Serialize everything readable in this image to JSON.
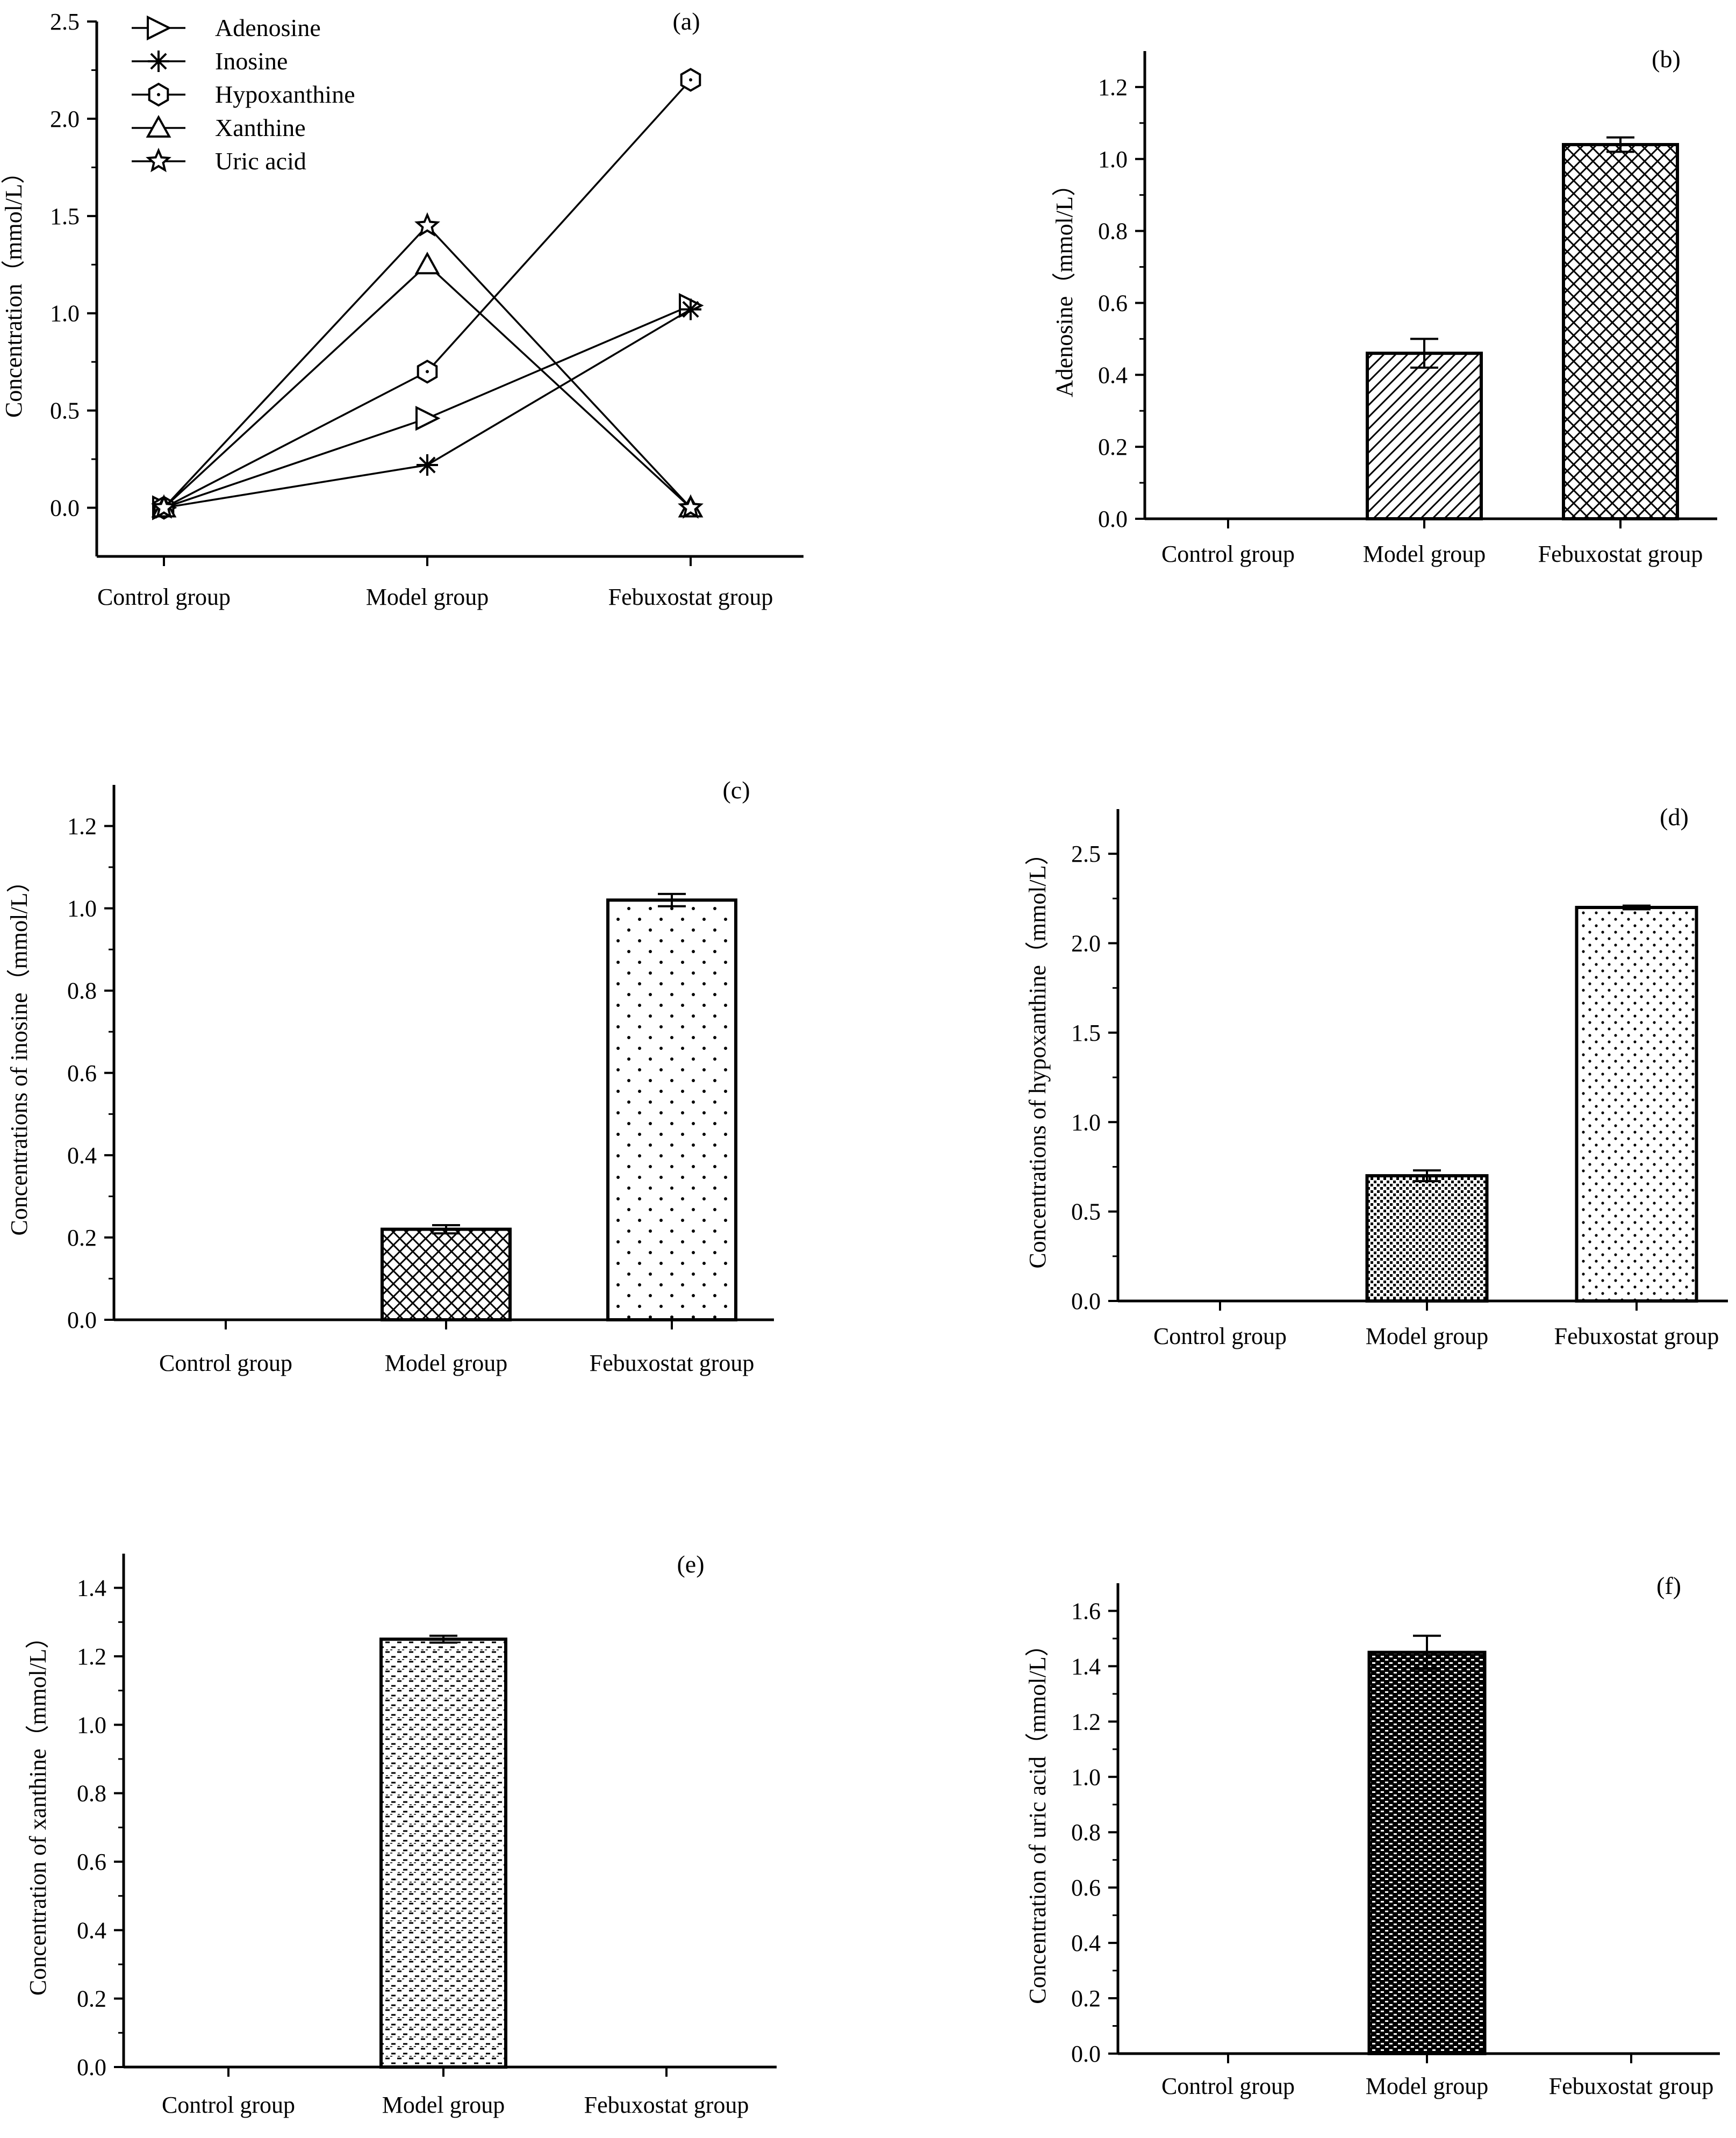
{
  "chart_data": [
    {
      "panel": "(a)",
      "type": "line",
      "title": "",
      "ylabel": "Concentration（mmol/L）",
      "xlabel": "",
      "categories": [
        "Control group",
        "Model group",
        "Febuxostat group"
      ],
      "ylim": [
        -0.25,
        2.5
      ],
      "yticks": [
        "0.0",
        "0.5",
        "1.0",
        "1.5",
        "2.0",
        "2.5"
      ],
      "series": [
        {
          "name": "Adenosine",
          "marker": "triangle-right",
          "values": [
            0,
            0.46,
            1.04
          ]
        },
        {
          "name": "Inosine",
          "marker": "asterisk",
          "values": [
            0,
            0.22,
            1.02
          ]
        },
        {
          "name": "Hypoxanthine",
          "marker": "hexagon",
          "values": [
            0,
            0.7,
            2.2
          ]
        },
        {
          "name": "Xanthine",
          "marker": "triangle-up",
          "values": [
            0,
            1.25,
            0
          ]
        },
        {
          "name": "Uric acid",
          "marker": "star",
          "values": [
            0,
            1.45,
            0
          ]
        }
      ]
    },
    {
      "panel": "(b)",
      "type": "bar",
      "ylabel": "Adenosine（mmol/L）",
      "categories": [
        "Control group",
        "Model group",
        "Febuxostat group"
      ],
      "values": [
        0,
        0.46,
        1.04
      ],
      "errors": [
        0,
        0.04,
        0.02
      ],
      "patterns": [
        "none",
        "diag",
        "crosshatch"
      ],
      "ylim": [
        0,
        1.3
      ],
      "yticks": [
        "0.0",
        "0.2",
        "0.4",
        "0.6",
        "0.8",
        "1.0",
        "1.2"
      ]
    },
    {
      "panel": "(c)",
      "type": "bar",
      "ylabel": "Concentrations of inosine（mmol/L）",
      "categories": [
        "Control group",
        "Model group",
        "Febuxostat group"
      ],
      "values": [
        0,
        0.22,
        1.02
      ],
      "errors": [
        0,
        0.01,
        0.015
      ],
      "patterns": [
        "none",
        "crosshatch",
        "sparsedots"
      ],
      "ylim": [
        0,
        1.3
      ],
      "yticks": [
        "0.0",
        "0.2",
        "0.4",
        "0.6",
        "0.8",
        "1.0",
        "1.2"
      ]
    },
    {
      "panel": "(d)",
      "type": "bar",
      "ylabel": "Concentrations of hypoxanthine（mmol/L）",
      "categories": [
        "Control group",
        "Model group",
        "Febuxostat group"
      ],
      "values": [
        0,
        0.7,
        2.2
      ],
      "errors": [
        0,
        0.03,
        0.01
      ],
      "patterns": [
        "none",
        "densedots",
        "mediumdots"
      ],
      "ylim": [
        0,
        2.75
      ],
      "yticks": [
        "0.0",
        "0.5",
        "1.0",
        "1.5",
        "2.0",
        "2.5"
      ]
    },
    {
      "panel": "(e)",
      "type": "bar",
      "ylabel": "Concentration of  xanthine（mmol/L）",
      "categories": [
        "Control group",
        "Model group",
        "Febuxostat group"
      ],
      "values": [
        0,
        1.25,
        0
      ],
      "errors": [
        0,
        0.01,
        0
      ],
      "patterns": [
        "none",
        "dashes",
        "none"
      ],
      "ylim": [
        0,
        1.5
      ],
      "yticks": [
        "0.0",
        "0.2",
        "0.4",
        "0.6",
        "0.8",
        "1.0",
        "1.2",
        "1.4"
      ]
    },
    {
      "panel": "(f)",
      "type": "bar",
      "ylabel": "Concentration of uric acid（mmol/L）",
      "categories": [
        "Control group",
        "Model group",
        "Febuxostat group"
      ],
      "values": [
        0,
        1.45,
        0
      ],
      "errors": [
        0,
        0.06,
        0
      ],
      "patterns": [
        "none",
        "bricks",
        "none"
      ],
      "ylim": [
        0,
        1.7
      ],
      "yticks": [
        "0.0",
        "0.2",
        "0.4",
        "0.6",
        "0.8",
        "1.0",
        "1.2",
        "1.4",
        "1.6"
      ]
    }
  ]
}
